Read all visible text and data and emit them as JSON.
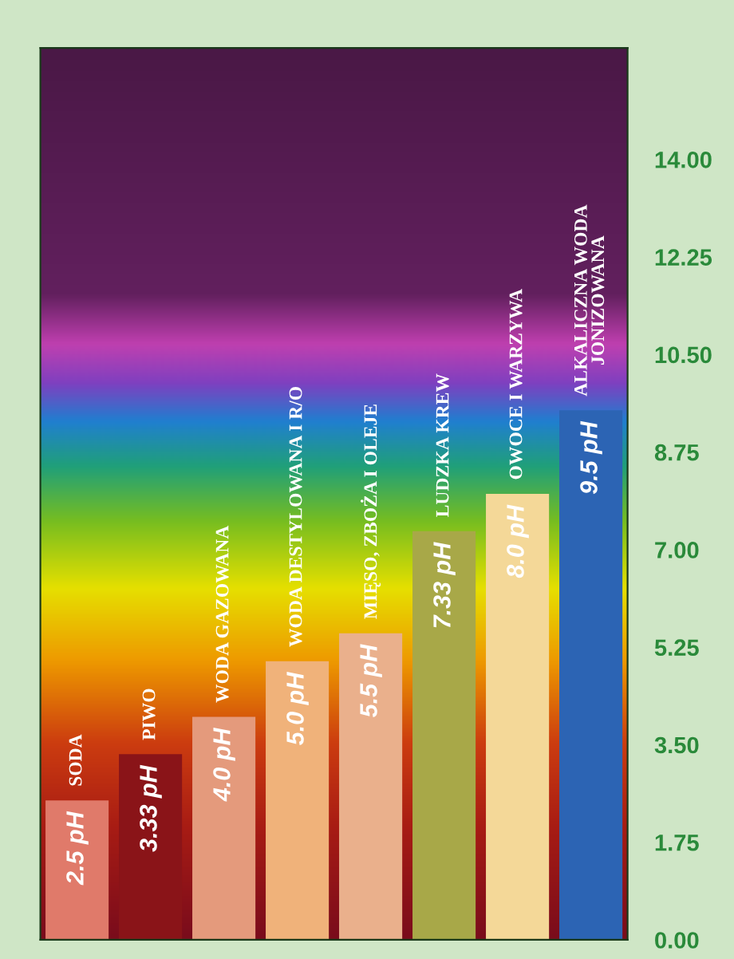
{
  "chart_data": {
    "type": "bar",
    "categories": [
      "SODA",
      "PIWO",
      "WODA GAZOWANA",
      "WODA DESTYLOWANA I R/O",
      "MIĘSO, ZBOŻA I OLEJE",
      "LUDZKA KREW",
      "OWOCE I WARZYWA",
      "ALKALICZNA WODA\nJONIZOWANA"
    ],
    "values": [
      2.5,
      3.33,
      4.0,
      5.0,
      5.5,
      7.33,
      8.0,
      9.5
    ],
    "colors": [
      "#e07a6a",
      "#8a1418",
      "#e49a7c",
      "#f0b27a",
      "#eab08c",
      "#a8a848",
      "#f4d898",
      "#2c64b4"
    ],
    "value_labels": [
      "2.5 pH",
      "3.33 pH",
      "4.0 pH",
      "5.0 pH",
      "5.5 pH",
      "7.33 pH",
      "8.0 pH",
      "9.5 pH"
    ],
    "ylim": [
      0,
      16
    ],
    "yticks": [
      {
        "value": 0,
        "label": "0.00"
      },
      {
        "value": 1.75,
        "label": "1.75"
      },
      {
        "value": 3.5,
        "label": "3.50"
      },
      {
        "value": 5.25,
        "label": "5.25"
      },
      {
        "value": 7,
        "label": "7.00"
      },
      {
        "value": 8.75,
        "label": "8.75"
      },
      {
        "value": 10.5,
        "label": "10.50"
      },
      {
        "value": 12.25,
        "label": "12.25"
      },
      {
        "value": 14,
        "label": "14.00"
      }
    ],
    "tick_labels": "y",
    "grid": false,
    "legend": false
  }
}
